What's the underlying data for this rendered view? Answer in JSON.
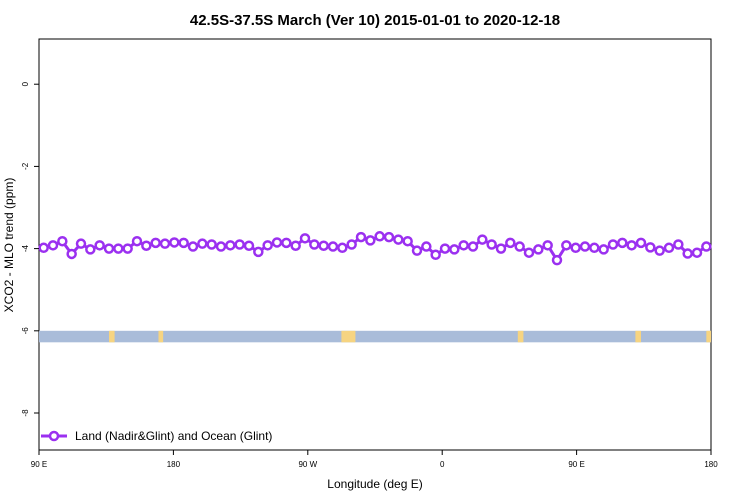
{
  "chart_data": {
    "type": "line",
    "title": "42.5S-37.5S March (Ver 10)   2015-01-01 to 2020-12-18",
    "xlabel": "Longitude (deg E)",
    "ylabel": "XCO2 - MLO trend (ppm)",
    "xlim": [
      90,
      450
    ],
    "ylim": [
      -8.9,
      1.1
    ],
    "x_ticks": [
      {
        "value": 90,
        "label": "90 E"
      },
      {
        "value": 162,
        "label": "180"
      },
      {
        "value": 234,
        "label": "90 W"
      },
      {
        "value": 306,
        "label": "0"
      },
      {
        "value": 378,
        "label": "90 E"
      },
      {
        "value": 450,
        "label": "180"
      }
    ],
    "y_ticks": [
      {
        "value": 0,
        "label": "0"
      },
      {
        "value": -2,
        "label": "-2"
      },
      {
        "value": -4,
        "label": "-4"
      },
      {
        "value": -6,
        "label": "-6"
      },
      {
        "value": -8,
        "label": "-8"
      }
    ],
    "grid": false,
    "legend_position": "bottom-left",
    "series": [
      {
        "name": "Land (Nadir&Glint) and Ocean (Glint)",
        "color": "#9b30f0",
        "marker": "open-circle",
        "x": [
          92.5,
          97.5,
          102.5,
          107.5,
          112.5,
          117.5,
          122.5,
          127.5,
          132.5,
          137.5,
          142.5,
          147.5,
          152.5,
          157.5,
          162.5,
          167.5,
          172.5,
          177.5,
          182.5,
          187.5,
          192.5,
          197.5,
          202.5,
          207.5,
          212.5,
          217.5,
          222.5,
          227.5,
          232.5,
          237.5,
          242.5,
          247.5,
          252.5,
          257.5,
          262.5,
          267.5,
          272.5,
          277.5,
          282.5,
          287.5,
          292.5,
          297.5,
          302.5,
          307.5,
          312.5,
          317.5,
          322.5,
          327.5,
          332.5,
          337.5,
          342.5,
          347.5,
          352.5,
          357.5,
          362.5,
          367.5,
          372.5,
          377.5,
          382.5,
          387.5,
          392.5,
          397.5,
          402.5,
          407.5,
          412.5,
          417.5,
          422.5,
          427.5,
          432.5,
          437.5,
          442.5,
          447.5
        ],
        "values": [
          -3.98,
          -3.92,
          -3.82,
          -4.13,
          -3.88,
          -4.02,
          -3.92,
          -4.0,
          -4.0,
          -4.0,
          -3.82,
          -3.93,
          -3.86,
          -3.88,
          -3.85,
          -3.86,
          -3.95,
          -3.88,
          -3.9,
          -3.95,
          -3.92,
          -3.9,
          -3.93,
          -4.08,
          -3.92,
          -3.85,
          -3.86,
          -3.93,
          -3.75,
          -3.9,
          -3.93,
          -3.95,
          -3.98,
          -3.9,
          -3.72,
          -3.8,
          -3.7,
          -3.72,
          -3.78,
          -3.82,
          -4.05,
          -3.95,
          -4.15,
          -4.0,
          -4.02,
          -3.92,
          -3.95,
          -3.78,
          -3.9,
          -4.0,
          -3.86,
          -3.95,
          -4.1,
          -4.02,
          -3.92,
          -4.28,
          -3.92,
          -3.98,
          -3.95,
          -3.98,
          -4.02,
          -3.9,
          -3.86,
          -3.92,
          -3.86,
          -3.97,
          -4.05,
          -3.98,
          -3.9,
          -4.12,
          -4.1,
          -3.95
        ]
      }
    ],
    "surface_band": {
      "y_range": [
        -6.0,
        -6.28
      ],
      "ocean_color": "#a9bcd9",
      "land_color": "#f6d481",
      "land_segments": [
        [
          127.5,
          130.5
        ],
        [
          154.0,
          156.5
        ],
        [
          252.0,
          259.5
        ],
        [
          346.5,
          349.5
        ],
        [
          409.5,
          412.5
        ],
        [
          447.5,
          450.0
        ]
      ]
    }
  }
}
